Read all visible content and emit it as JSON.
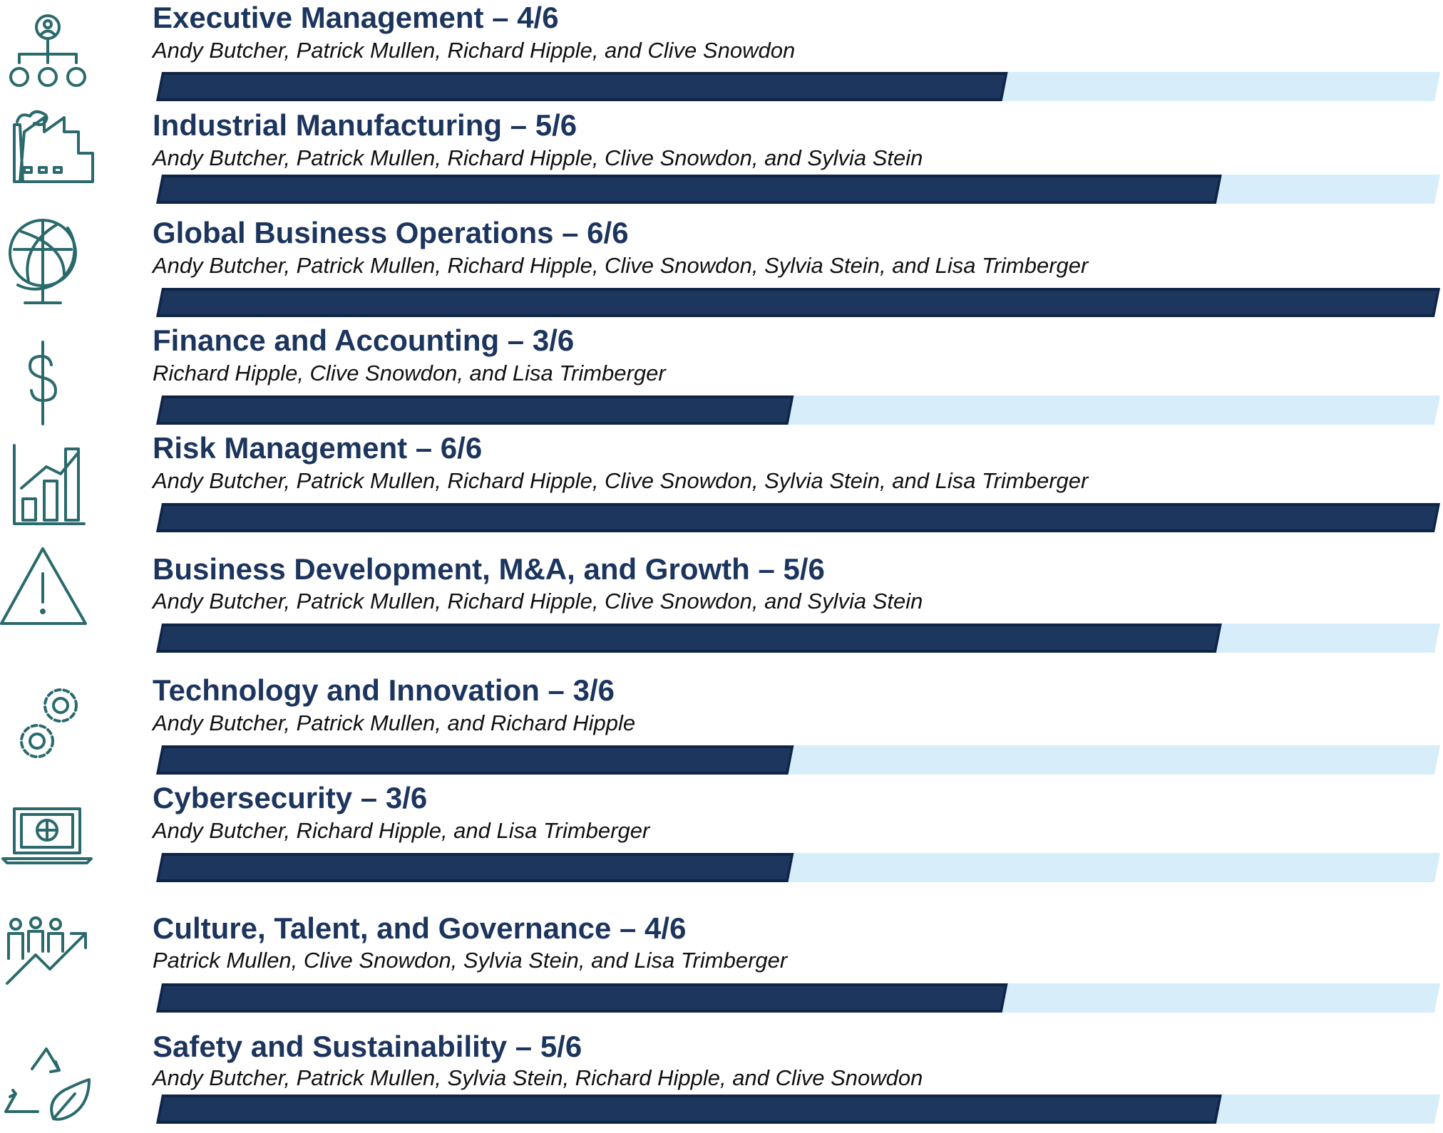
{
  "max": 6,
  "colors": {
    "title": "#1c355e",
    "bar_fill": "#1c365d",
    "bar_track": "#d7eefa",
    "icon": "#2b6a6c"
  },
  "rows": [
    {
      "title": "Executive Management – 4/6",
      "names": "Andy Butcher, Patrick Mullen, Richard Hipple, and Clive Snowdon",
      "score": 4,
      "icon": "org-chart-icon"
    },
    {
      "title": "Industrial Manufacturing – 5/6",
      "names": "Andy Butcher, Patrick Mullen, Richard Hipple, Clive Snowdon, and Sylvia Stein",
      "score": 5,
      "icon": "factory-icon"
    },
    {
      "title": "Global Business Operations – 6/6",
      "names": "Andy Butcher, Patrick Mullen, Richard Hipple, Clive Snowdon, Sylvia Stein, and Lisa Trimberger",
      "score": 6,
      "icon": "globe-icon"
    },
    {
      "title": "Finance and Accounting – 3/6",
      "names": "Richard Hipple, Clive Snowdon, and Lisa Trimberger",
      "score": 3,
      "icon": "dollar-icon"
    },
    {
      "title": "Risk Management – 6/6",
      "names": "Andy Butcher, Patrick Mullen, Richard Hipple, Clive Snowdon, Sylvia Stein, and Lisa Trimberger",
      "score": 6,
      "icon": "bar-chart-icon"
    },
    {
      "title": "Business Development, M&A, and Growth – 5/6",
      "names": "Andy Butcher, Patrick Mullen, Richard Hipple, Clive Snowdon, and Sylvia Stein",
      "score": 5,
      "icon": "warning-icon"
    },
    {
      "title": "Technology and Innovation – 3/6",
      "names": "Andy Butcher, Patrick Mullen, and Richard Hipple",
      "score": 3,
      "icon": "gears-icon"
    },
    {
      "title": "Cybersecurity – 3/6",
      "names": "Andy Butcher, Richard Hipple, and Lisa Trimberger",
      "score": 3,
      "icon": "laptop-globe-icon"
    },
    {
      "title": "Culture, Talent, and Governance – 4/6",
      "names": "Patrick Mullen, Clive Snowdon, Sylvia Stein, and Lisa Trimberger",
      "score": 4,
      "icon": "people-growth-icon"
    },
    {
      "title": "Safety and Sustainability – 5/6",
      "names": "Andy Butcher, Patrick Mullen, Sylvia Stein, Richard Hipple, and Clive Snowdon",
      "score": 5,
      "icon": "recycle-leaf-icon"
    }
  ]
}
